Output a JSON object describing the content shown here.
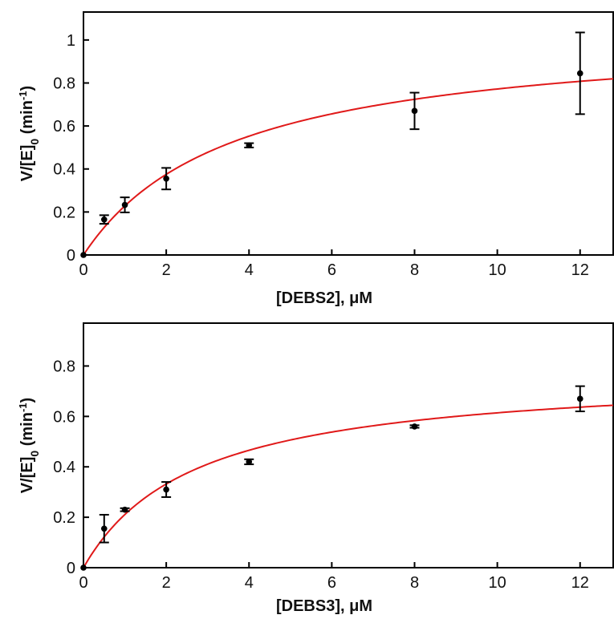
{
  "chart_data": [
    {
      "type": "scatter",
      "xlabel": "[DEBS2], μM",
      "ylabel": "V/[E]0 (min-1)",
      "ylabel_parts": {
        "main": "V/[E]",
        "sub": "0",
        "paren": " (min",
        "sup": "-1",
        "close": ")"
      },
      "xlim": [
        0,
        12.8
      ],
      "ylim": [
        0,
        1.13
      ],
      "xticks": [
        0,
        2,
        4,
        6,
        8,
        10,
        12
      ],
      "yticks": [
        0,
        0.2,
        0.4,
        0.6,
        0.8,
        1
      ],
      "ytick_labels": [
        "0",
        "0.2",
        "0.4",
        "0.6",
        "0.8",
        "1"
      ],
      "grid": false,
      "series": [
        {
          "kind": "points_with_error",
          "x": [
            0,
            0.5,
            1,
            2,
            4,
            8,
            12
          ],
          "y": [
            0,
            0.165,
            0.233,
            0.355,
            0.51,
            0.67,
            0.845
          ],
          "err": [
            0,
            0.02,
            0.035,
            0.05,
            0.01,
            0.085,
            0.19
          ],
          "color": "#000000"
        },
        {
          "kind": "fit_curve",
          "model": "michaelis-menten",
          "vmax": 1.05,
          "km": 3.6,
          "color": "#e01919"
        }
      ]
    },
    {
      "type": "scatter",
      "xlabel": "[DEBS3], μM",
      "ylabel": "V/[E]0 (min-1)",
      "ylabel_parts": {
        "main": "V/[E]",
        "sub": "0",
        "paren": " (min",
        "sup": "-1",
        "close": ")"
      },
      "xlim": [
        0,
        12.8
      ],
      "ylim": [
        0,
        0.97
      ],
      "xticks": [
        0,
        2,
        4,
        6,
        8,
        10,
        12
      ],
      "yticks": [
        0,
        0.2,
        0.4,
        0.6,
        0.8
      ],
      "ytick_labels": [
        "0",
        "0.2",
        "0.4",
        "0.6",
        "0.8"
      ],
      "grid": false,
      "series": [
        {
          "kind": "points_with_error",
          "x": [
            0,
            0.5,
            1,
            2,
            4,
            8,
            12
          ],
          "y": [
            0,
            0.155,
            0.23,
            0.31,
            0.42,
            0.56,
            0.67
          ],
          "err": [
            0,
            0.055,
            0.006,
            0.03,
            0.01,
            0.005,
            0.05
          ],
          "color": "#000000"
        },
        {
          "kind": "fit_curve",
          "model": "michaelis-menten",
          "vmax": 0.78,
          "km": 2.7,
          "color": "#e01919"
        }
      ]
    }
  ]
}
